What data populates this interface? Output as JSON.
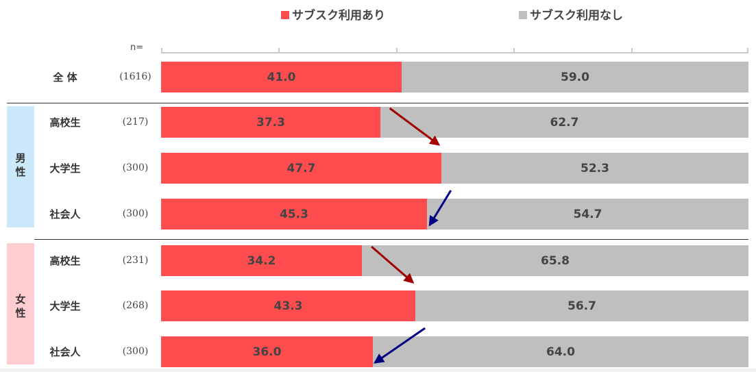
{
  "legend": [
    {
      "label": "サブスク利用あり",
      "color": "#ff4d4f"
    },
    {
      "label": "サブスク利用なし",
      "color": "#bfbfbf"
    }
  ],
  "n_label": "n=",
  "groups": [
    {
      "label": "男\n性",
      "color": "#cce9fb"
    },
    {
      "label": "女\n性",
      "color": "#ffccd0"
    }
  ],
  "chart_data": {
    "type": "bar",
    "orientation": "horizontal",
    "stacked": true,
    "categories": [
      "全 体",
      "高校生",
      "大学生",
      "社会人",
      "高校生",
      "大学生",
      "社会人"
    ],
    "group_of_category": [
      null,
      "男性",
      "男性",
      "男性",
      "女性",
      "女性",
      "女性"
    ],
    "n": [
      "(1616)",
      "(217)",
      "(300)",
      "(300)",
      "(231)",
      "(268)",
      "(300)"
    ],
    "series": [
      {
        "name": "サブスク利用あり",
        "color": "#ff4d4f",
        "values": [
          41.0,
          37.3,
          47.7,
          45.3,
          34.2,
          43.3,
          36.0
        ]
      },
      {
        "name": "サブスク利用なし",
        "color": "#bfbfbf",
        "values": [
          59.0,
          62.7,
          52.3,
          54.7,
          65.8,
          56.7,
          64.0
        ]
      }
    ],
    "xlim": [
      0,
      100
    ],
    "annotations": [
      {
        "type": "arrow",
        "direction": "up",
        "from": "高校生",
        "to": "大学生",
        "group": "男性",
        "color": "#a00000"
      },
      {
        "type": "arrow",
        "direction": "down",
        "from": "大学生",
        "to": "社会人",
        "group": "男性",
        "color": "#000080"
      },
      {
        "type": "arrow",
        "direction": "up",
        "from": "高校生",
        "to": "大学生",
        "group": "女性",
        "color": "#a00000"
      },
      {
        "type": "arrow",
        "direction": "down",
        "from": "大学生",
        "to": "社会人",
        "group": "女性",
        "color": "#000080"
      }
    ]
  }
}
